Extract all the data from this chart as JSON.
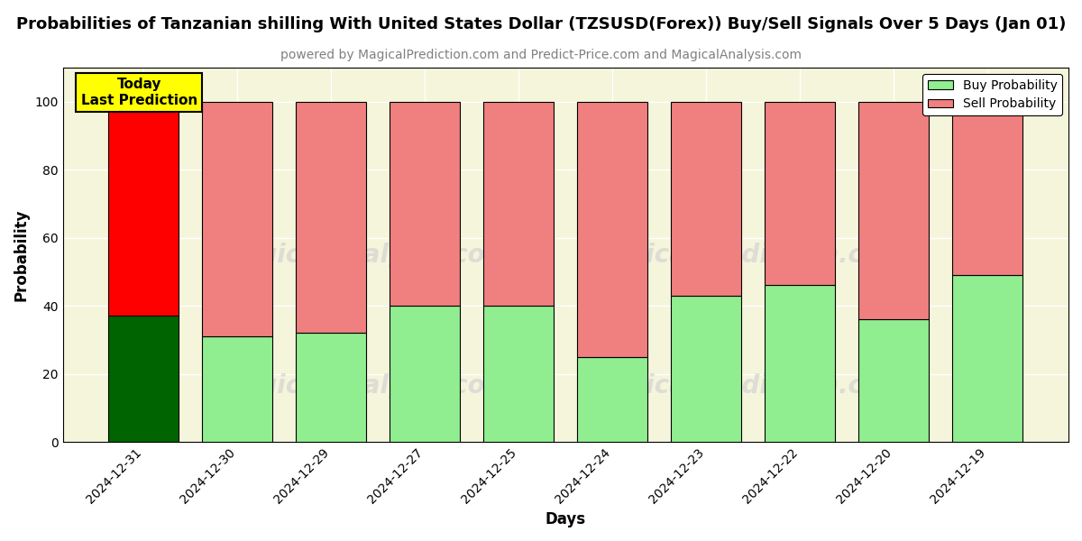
{
  "title": "Probabilities of Tanzanian shilling With United States Dollar (TZSUSD(Forex)) Buy/Sell Signals Over 5 Days (Jan 01)",
  "subtitle": "powered by MagicalPrediction.com and Predict-Price.com and MagicalAnalysis.com",
  "xlabel": "Days",
  "ylabel": "Probability",
  "categories": [
    "2024-12-31",
    "2024-12-30",
    "2024-12-29",
    "2024-12-27",
    "2024-12-25",
    "2024-12-24",
    "2024-12-23",
    "2024-12-22",
    "2024-12-20",
    "2024-12-19"
  ],
  "buy_values": [
    37,
    31,
    32,
    40,
    40,
    25,
    43,
    46,
    36,
    49
  ],
  "sell_values": [
    63,
    69,
    68,
    60,
    60,
    75,
    57,
    54,
    64,
    51
  ],
  "buy_color_today": "#006400",
  "sell_color_today": "#FF0000",
  "buy_color_normal": "#90EE90",
  "sell_color_normal": "#F08080",
  "today_label": "Today\nLast Prediction",
  "legend_buy": "Buy Probability",
  "legend_sell": "Sell Probability",
  "ylim": [
    0,
    110
  ],
  "yticks": [
    0,
    20,
    40,
    60,
    80,
    100
  ],
  "dashed_line_y": 110,
  "plot_bg_color": "#f5f5dc",
  "background_color": "#ffffff",
  "watermark_text1": "MagicalAnalysis.com",
  "watermark_text2": "MagicalPrediction.com",
  "title_fontsize": 13,
  "subtitle_fontsize": 10,
  "axis_label_fontsize": 12,
  "tick_fontsize": 10
}
